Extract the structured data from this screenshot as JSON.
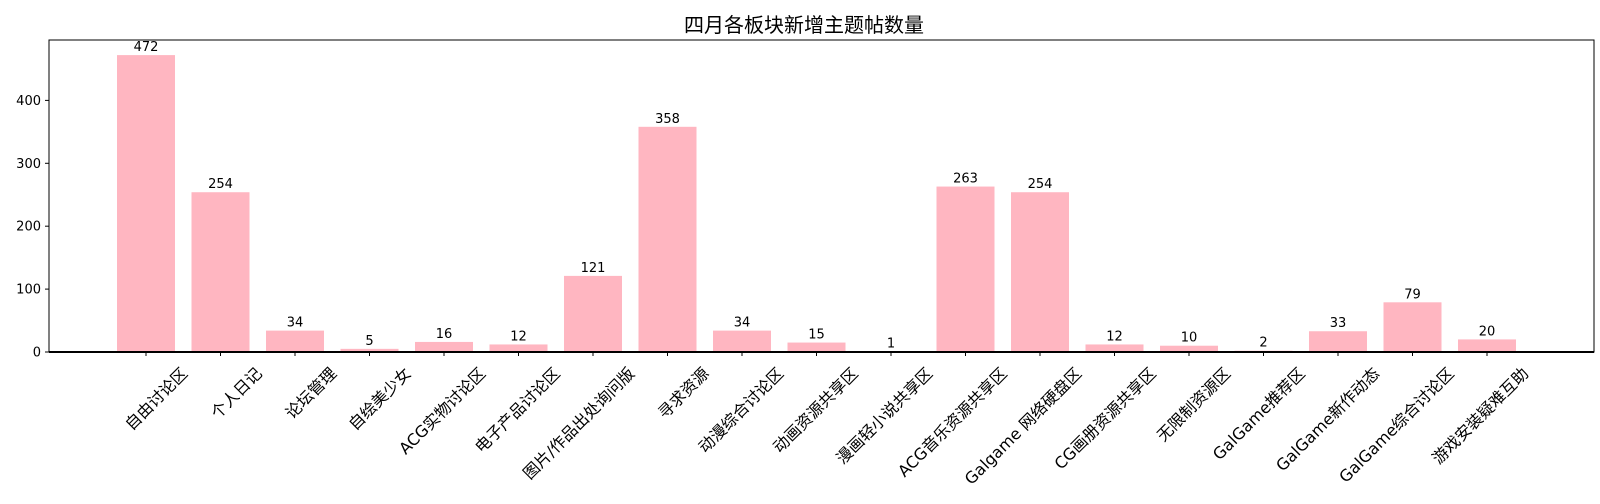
{
  "chart_data": {
    "type": "bar",
    "title": "四月各板块新增主题帖数量",
    "xlabel": "",
    "ylabel": "",
    "categories": [
      "自由讨论区",
      "个人日记",
      "论坛管理",
      "自绘美少女",
      "ACG实物讨论区",
      "电子产品讨论区",
      "图片/作品出处询问版",
      "寻求资源",
      "动漫综合讨论区",
      "动画资源共享区",
      "漫画轻小说共享区",
      "ACG音乐资源共享区",
      "Galgame 网络硬盘区",
      "CG画册资源共享区",
      "无限制资源区",
      "GalGame推荐区",
      "GalGame新作动态",
      "GalGame综合讨论区",
      "游戏安装疑难互助"
    ],
    "values": [
      472,
      254,
      34,
      5,
      16,
      12,
      121,
      358,
      34,
      15,
      1,
      263,
      254,
      12,
      10,
      2,
      33,
      79,
      20
    ],
    "value_labels": [
      "472",
      "254",
      "34",
      "5",
      "16",
      "12",
      "121",
      "358",
      "34",
      "15",
      "1",
      "263",
      "254",
      "12",
      "10",
      "2",
      "33",
      "79",
      "20"
    ],
    "y_ticks": [
      0,
      100,
      200,
      300,
      400
    ],
    "y_tick_labels": [
      "0",
      "100",
      "200",
      "300",
      "400"
    ],
    "ylim": [
      0,
      496
    ],
    "bar_color": "#ffb6c1",
    "grid": false,
    "legend": "none"
  }
}
